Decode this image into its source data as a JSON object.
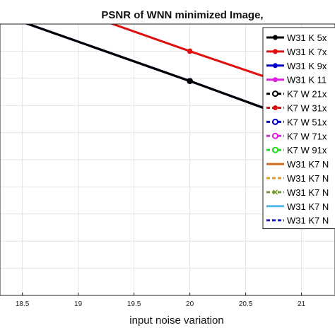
{
  "chart_data": {
    "type": "line",
    "title": "PSNR of WNN minimized Image,",
    "xlabel": "input noise variation",
    "ylabel": "",
    "xlim": [
      18.3,
      21.3
    ],
    "ylim": [
      0,
      10
    ],
    "x_ticks": [
      "18.5",
      "19",
      "19.5",
      "20",
      "20.5",
      "21"
    ],
    "grid": true,
    "legend_position": "top-right",
    "series": [
      {
        "name": "W31 K 5x",
        "color": "#000000",
        "style": "solid",
        "marker": "dot",
        "x": [
          18,
          20,
          21
        ],
        "y": [
          10.8,
          7.9,
          6.4
        ]
      },
      {
        "name": "W31 K 7x",
        "color": "#e01010",
        "style": "solid",
        "marker": "dot",
        "x": [
          18,
          20,
          21
        ],
        "y": [
          11.9,
          9.0,
          7.6
        ]
      },
      {
        "name": "W31 K 9x",
        "color": "#0000cc",
        "style": "solid",
        "marker": "dot",
        "x": [
          18,
          20,
          21
        ],
        "y": [
          10.8,
          7.9,
          6.4
        ]
      },
      {
        "name": "W31 K 11",
        "color": "#e020e0",
        "style": "solid",
        "marker": "dot",
        "x": [
          18,
          20,
          21
        ],
        "y": [
          10.8,
          7.9,
          6.4
        ]
      },
      {
        "name": "K7 W 21x",
        "color": "#000000",
        "style": "dashed",
        "marker": "circle",
        "x": [
          18,
          20,
          21
        ],
        "y": [
          10.8,
          7.9,
          6.4
        ]
      },
      {
        "name": "K7 W 31x",
        "color": "#e01010",
        "style": "dashed",
        "marker": "dot",
        "x": [
          18,
          20,
          21
        ],
        "y": [
          10.8,
          7.9,
          6.4
        ]
      },
      {
        "name": "K7 W 51x",
        "color": "#0000cc",
        "style": "dashed",
        "marker": "circle",
        "x": [
          18,
          20,
          21
        ],
        "y": [
          10.8,
          7.9,
          6.4
        ]
      },
      {
        "name": "K7 W 71x",
        "color": "#e020e0",
        "style": "dashed",
        "marker": "circle",
        "x": [
          18,
          20,
          21
        ],
        "y": [
          10.8,
          7.9,
          6.4
        ]
      },
      {
        "name": "K7 W 91x",
        "color": "#22dd22",
        "style": "dashed",
        "marker": "circle",
        "x": [
          18,
          20,
          21
        ],
        "y": [
          10.8,
          7.9,
          6.4
        ]
      },
      {
        "name": "W31 K7 N",
        "color": "#d2691e",
        "style": "solid",
        "marker": "none",
        "x": [
          18,
          20,
          21
        ],
        "y": [
          10.8,
          7.9,
          6.4
        ]
      },
      {
        "name": "W31 K7 N",
        "color": "#e0a020",
        "style": "dashed",
        "marker": "none",
        "x": [
          18,
          20,
          21
        ],
        "y": [
          10.8,
          7.9,
          6.4
        ]
      },
      {
        "name": "W31 K7 N",
        "color": "#6a9a20",
        "style": "dashed",
        "marker": "x",
        "x": [
          18,
          20,
          21
        ],
        "y": [
          10.8,
          7.9,
          6.4
        ]
      },
      {
        "name": "W31 K7 N",
        "color": "#55bbee",
        "style": "solid",
        "marker": "none",
        "x": [
          18,
          20,
          21
        ],
        "y": [
          10.8,
          7.9,
          6.4
        ]
      },
      {
        "name": "W31 K7 N",
        "color": "#1a1acc",
        "style": "dashed",
        "marker": "none",
        "x": [
          18,
          20,
          21
        ],
        "y": [
          10.8,
          7.9,
          6.4
        ]
      }
    ]
  }
}
